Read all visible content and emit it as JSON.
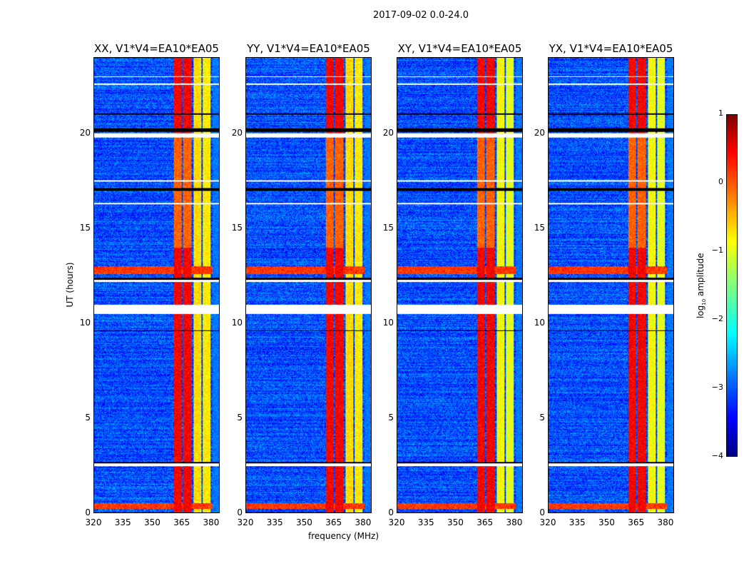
{
  "suptitle": "2017-09-02 0.0-24.0",
  "xlabel": "frequency (MHz)",
  "ylabel": "UT (hours)",
  "colorbar": {
    "label_prefix": "log",
    "label_sub": "10",
    "label_suffix": " amplitude",
    "ticks": [
      "1",
      "0",
      "−1",
      "−2",
      "−3",
      "−4"
    ],
    "tick_values": [
      1,
      0,
      -1,
      -2,
      -3,
      -4
    ],
    "range": [
      -4,
      1
    ],
    "colormap": "jet"
  },
  "chart_data": {
    "type": "heatmap",
    "panels": [
      {
        "title": "XX, V1*V4=EA10*EA05",
        "pol": "XX"
      },
      {
        "title": "YY, V1*V4=EA10*EA05",
        "pol": "YY"
      },
      {
        "title": "XY, V1*V4=EA10*EA05",
        "pol": "XY"
      },
      {
        "title": "YX, V1*V4=EA10*EA05",
        "pol": "YX"
      }
    ],
    "x_ticks": [
      "320",
      "335",
      "350",
      "365",
      "380"
    ],
    "x_tick_values": [
      320,
      335,
      350,
      365,
      380
    ],
    "y_ticks": [
      "0",
      "5",
      "10",
      "15",
      "20"
    ],
    "y_tick_values": [
      0,
      5,
      10,
      15,
      20
    ],
    "xlim": [
      320,
      384.4
    ],
    "ylim": [
      0,
      24
    ],
    "bright_bands_mhz": [
      {
        "range": [
          361,
          365
        ],
        "level": 0.4
      },
      {
        "range": [
          365.5,
          370
        ],
        "level": 0.4
      },
      {
        "range": [
          371,
          375
        ],
        "level": -0.7
      },
      {
        "range": [
          376,
          380
        ],
        "level": -0.8
      }
    ],
    "background_level": -3,
    "flagged_hours_white": [
      [
        19.8,
        20.05
      ],
      [
        10.5,
        11.0
      ],
      [
        2.45,
        2.6
      ],
      [
        12.2,
        12.3
      ],
      [
        22.6,
        22.65
      ],
      [
        23.0,
        23.05
      ],
      [
        17.5,
        17.55
      ],
      [
        16.3,
        16.35
      ]
    ],
    "flagged_hours_black": [
      [
        20.1,
        20.3
      ],
      [
        12.3,
        12.4
      ],
      [
        2.6,
        2.7
      ],
      [
        17.0,
        17.15
      ],
      [
        21.0,
        21.1
      ],
      [
        9.6,
        9.65
      ]
    ],
    "rfi_hours": [
      [
        12.6,
        13.0
      ],
      [
        0.2,
        0.5
      ]
    ]
  }
}
